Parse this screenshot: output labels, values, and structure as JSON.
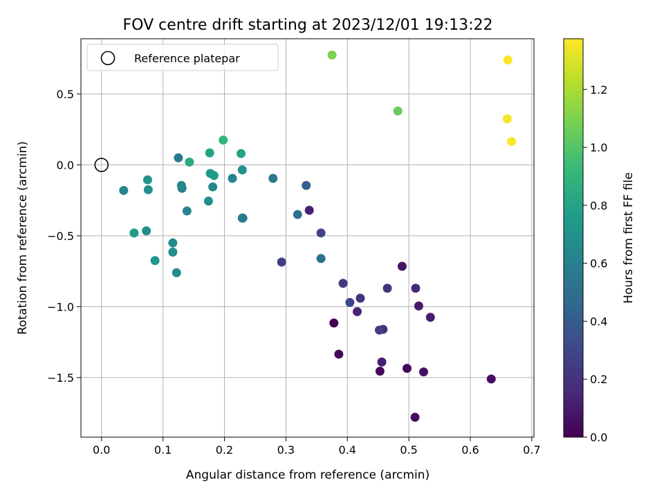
{
  "chart_data": {
    "type": "scatter",
    "title": "FOV centre drift starting at 2023/12/01 19:13:22",
    "xlabel": "Angular distance from reference (arcmin)",
    "ylabel": "Rotation from reference (arcmin)",
    "xlim": [
      -0.0335,
      0.7035
    ],
    "ylim": [
      -1.92,
      0.89
    ],
    "xticks": [
      0.0,
      0.1,
      0.2,
      0.3,
      0.4,
      0.5,
      0.6,
      0.7
    ],
    "xtick_labels": [
      "0.0",
      "0.1",
      "0.2",
      "0.3",
      "0.4",
      "0.5",
      "0.6",
      "0.7"
    ],
    "yticks": [
      0.5,
      0.0,
      -0.5,
      -1.0,
      -1.5
    ],
    "ytick_labels": [
      "0.5",
      "0.0",
      "−0.5",
      "−1.0",
      "−1.5"
    ],
    "grid": true,
    "colormap": "viridis",
    "colorbar": {
      "label": "Hours from first FF file",
      "min": 0.0,
      "max": 1.375,
      "ticks": [
        0.0,
        0.2,
        0.4,
        0.6,
        0.8,
        1.0,
        1.2
      ],
      "tick_labels": [
        "0.0",
        "0.2",
        "0.4",
        "0.6",
        "0.8",
        "1.0",
        "1.2"
      ]
    },
    "legend": {
      "placement": "top-left",
      "entries": [
        {
          "label": "Reference platepar",
          "marker": "open-circle"
        }
      ]
    },
    "reference": {
      "x": 0.0,
      "y": 0.0
    },
    "points": [
      {
        "x": 0.378,
        "y": -1.115,
        "t": 0.0
      },
      {
        "x": 0.386,
        "y": -1.335,
        "t": 0.02
      },
      {
        "x": 0.453,
        "y": -1.455,
        "t": 0.02
      },
      {
        "x": 0.497,
        "y": -1.435,
        "t": 0.03
      },
      {
        "x": 0.51,
        "y": -1.78,
        "t": 0.04
      },
      {
        "x": 0.524,
        "y": -1.46,
        "t": 0.06
      },
      {
        "x": 0.634,
        "y": -1.51,
        "t": 0.05
      },
      {
        "x": 0.489,
        "y": -0.715,
        "t": 0.08
      },
      {
        "x": 0.516,
        "y": -0.995,
        "t": 0.1
      },
      {
        "x": 0.535,
        "y": -1.075,
        "t": 0.11
      },
      {
        "x": 0.456,
        "y": -1.39,
        "t": 0.12
      },
      {
        "x": 0.338,
        "y": -0.32,
        "t": 0.13
      },
      {
        "x": 0.416,
        "y": -1.035,
        "t": 0.14
      },
      {
        "x": 0.511,
        "y": -0.87,
        "t": 0.16
      },
      {
        "x": 0.458,
        "y": -1.16,
        "t": 0.18
      },
      {
        "x": 0.465,
        "y": -0.87,
        "t": 0.2
      },
      {
        "x": 0.421,
        "y": -0.94,
        "t": 0.21
      },
      {
        "x": 0.393,
        "y": -0.835,
        "t": 0.23
      },
      {
        "x": 0.452,
        "y": -1.165,
        "t": 0.25
      },
      {
        "x": 0.293,
        "y": -0.685,
        "t": 0.26
      },
      {
        "x": 0.357,
        "y": -0.48,
        "t": 0.28
      },
      {
        "x": 0.404,
        "y": -0.97,
        "t": 0.3
      },
      {
        "x": 0.333,
        "y": -0.145,
        "t": 0.42
      },
      {
        "x": 0.229,
        "y": -0.375,
        "t": 0.45
      },
      {
        "x": 0.357,
        "y": -0.66,
        "t": 0.5
      },
      {
        "x": 0.319,
        "y": -0.35,
        "t": 0.52
      },
      {
        "x": 0.279,
        "y": -0.095,
        "t": 0.55
      },
      {
        "x": 0.125,
        "y": 0.05,
        "t": 0.56
      },
      {
        "x": 0.23,
        "y": -0.375,
        "t": 0.57
      },
      {
        "x": 0.131,
        "y": -0.165,
        "t": 0.6
      },
      {
        "x": 0.213,
        "y": -0.095,
        "t": 0.61
      },
      {
        "x": 0.139,
        "y": -0.325,
        "t": 0.62
      },
      {
        "x": 0.036,
        "y": -0.18,
        "t": 0.63
      },
      {
        "x": 0.181,
        "y": -0.155,
        "t": 0.64
      },
      {
        "x": 0.13,
        "y": -0.145,
        "t": 0.65
      },
      {
        "x": 0.122,
        "y": -0.76,
        "t": 0.66
      },
      {
        "x": 0.116,
        "y": -0.55,
        "t": 0.66
      },
      {
        "x": 0.073,
        "y": -0.465,
        "t": 0.67
      },
      {
        "x": 0.174,
        "y": -0.255,
        "t": 0.68
      },
      {
        "x": 0.116,
        "y": -0.615,
        "t": 0.68
      },
      {
        "x": 0.076,
        "y": -0.175,
        "t": 0.69
      },
      {
        "x": 0.229,
        "y": -0.035,
        "t": 0.7
      },
      {
        "x": 0.075,
        "y": -0.105,
        "t": 0.71
      },
      {
        "x": 0.087,
        "y": -0.675,
        "t": 0.72
      },
      {
        "x": 0.053,
        "y": -0.48,
        "t": 0.73
      },
      {
        "x": 0.177,
        "y": -0.06,
        "t": 0.74
      },
      {
        "x": 0.183,
        "y": -0.075,
        "t": 0.76
      },
      {
        "x": 0.176,
        "y": 0.085,
        "t": 0.8
      },
      {
        "x": 0.227,
        "y": 0.08,
        "t": 0.8
      },
      {
        "x": 0.143,
        "y": 0.02,
        "t": 0.84
      },
      {
        "x": 0.198,
        "y": 0.175,
        "t": 0.9
      },
      {
        "x": 0.482,
        "y": 0.38,
        "t": 1.05
      },
      {
        "x": 0.375,
        "y": 0.775,
        "t": 1.1
      },
      {
        "x": 0.66,
        "y": 0.325,
        "t": 1.36
      },
      {
        "x": 0.667,
        "y": 0.165,
        "t": 1.37
      },
      {
        "x": 0.661,
        "y": 0.74,
        "t": 1.37
      }
    ],
    "colors": {
      "viridis_stops": [
        "#440154",
        "#482878",
        "#3e4989",
        "#31688e",
        "#26828e",
        "#1f9e89",
        "#35b779",
        "#6ece58",
        "#b5de2b",
        "#fde725"
      ],
      "axis": "#000000",
      "grid": "#b0b0b0",
      "legend_border": "#cccccc"
    }
  }
}
